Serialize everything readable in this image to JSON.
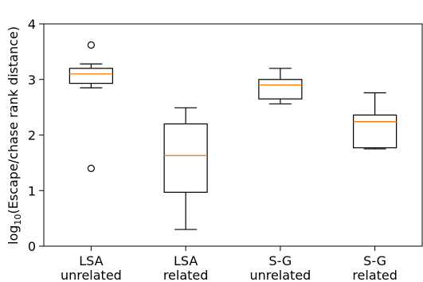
{
  "chart_data": {
    "type": "box",
    "ylabel": {
      "prefix": "log",
      "subscript": "10",
      "rest": "(Escape/chase rank distance)"
    },
    "ylim": [
      0,
      4
    ],
    "yticks": [
      "0",
      "1",
      "2",
      "3",
      "4"
    ],
    "categories": [
      [
        "LSA",
        "unrelated"
      ],
      [
        "LSA",
        "related"
      ],
      [
        "S-G",
        "unrelated"
      ],
      [
        "S-G",
        "related"
      ]
    ],
    "median_color": "#ff7f0e",
    "boxes": [
      {
        "whislo": 2.85,
        "q1": 2.93,
        "med": 3.1,
        "q3": 3.2,
        "whishi": 3.28,
        "fliers": [
          3.62,
          1.4
        ]
      },
      {
        "whislo": 0.3,
        "q1": 0.97,
        "med": 1.63,
        "q3": 2.2,
        "whishi": 2.49,
        "fliers": []
      },
      {
        "whislo": 2.56,
        "q1": 2.65,
        "med": 2.9,
        "q3": 3.0,
        "whishi": 3.2,
        "fliers": []
      },
      {
        "whislo": 1.75,
        "q1": 1.77,
        "med": 2.24,
        "q3": 2.36,
        "whishi": 2.76,
        "fliers": []
      }
    ]
  }
}
